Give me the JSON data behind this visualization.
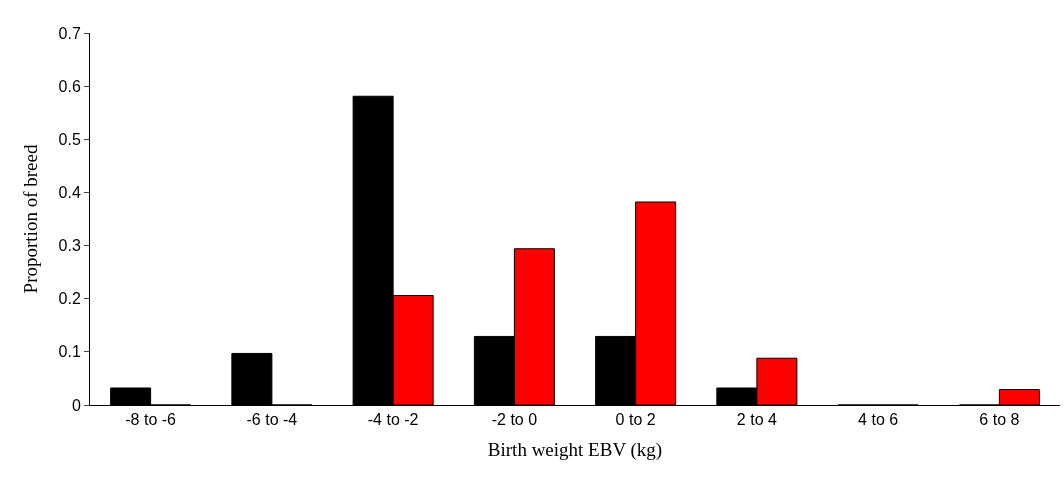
{
  "chart_data": {
    "type": "bar",
    "xlabel": "Birth weight EBV (kg)",
    "ylabel": "Proportion of breed",
    "categories": [
      "-8 to -6",
      "-6 to -4",
      "-4 to -2",
      "-2 to 0",
      "0 to 2",
      "2 to 4",
      "4 to 6",
      "6 to 8"
    ],
    "series": [
      {
        "color": "#000000",
        "values": [
          0.032,
          0.097,
          0.581,
          0.129,
          0.129,
          0.032,
          0,
          0
        ]
      },
      {
        "color": "#ff0000",
        "values": [
          0,
          0,
          0.206,
          0.294,
          0.382,
          0.088,
          0,
          0.029
        ]
      }
    ],
    "ylim": [
      0,
      0.7
    ],
    "yticks": [
      {
        "value": 0,
        "label": "0"
      },
      0.1,
      0.2,
      0.3,
      0.4,
      0.5,
      0.6,
      0.7
    ]
  }
}
